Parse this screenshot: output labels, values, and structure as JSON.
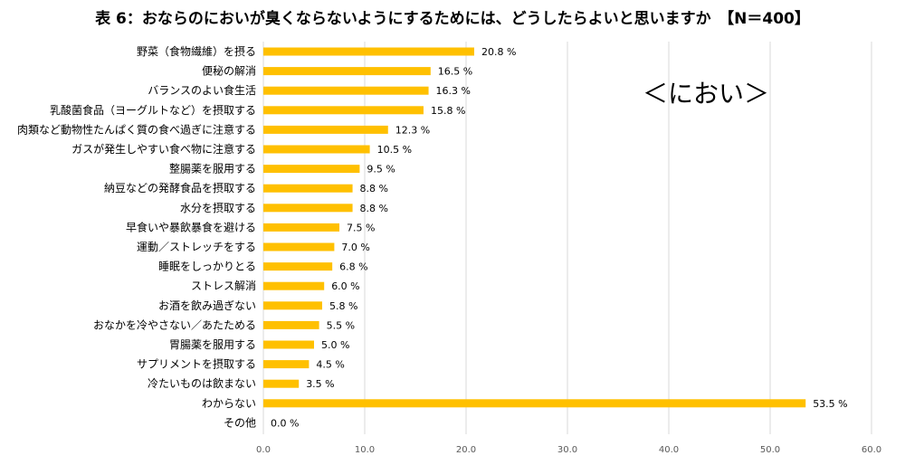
{
  "chart_data": {
    "type": "bar",
    "orientation": "horizontal",
    "title": "表 6：おならのにおいが臭くならないようにするためには、どうしたらよいと思いますか　【N＝400】",
    "annotation": "＜におい＞",
    "categories": [
      "野菜（食物繊維）を摂る",
      "便秘の解消",
      "バランスのよい食生活",
      "乳酸菌食品（ヨーグルトなど）を摂取する",
      "肉類など動物性たんぱく質の食べ過ぎに注意する",
      "ガスが発生しやすい食べ物に注意する",
      "整腸薬を服用する",
      "納豆などの発酵食品を摂取する",
      "水分を摂取する",
      "早食いや暴飲暴食を避ける",
      "運動／ストレッチをする",
      "睡眠をしっかりとる",
      "ストレス解消",
      "お酒を飲み過ぎない",
      "おなかを冷やさない／あたためる",
      "胃腸薬を服用する",
      "サプリメントを摂取する",
      "冷たいものは飲まない",
      "わからない",
      "その他"
    ],
    "values": [
      20.8,
      16.5,
      16.3,
      15.8,
      12.3,
      10.5,
      9.5,
      8.8,
      8.8,
      7.5,
      7.0,
      6.8,
      6.0,
      5.8,
      5.5,
      5.0,
      4.5,
      3.5,
      53.5,
      0.0
    ],
    "value_labels": [
      "20.8 %",
      "16.5 %",
      "16.3 %",
      "15.8 %",
      "12.3 %",
      "10.5 %",
      "9.5 %",
      "8.8 %",
      "8.8 %",
      "7.5 %",
      "7.0 %",
      "6.8 %",
      "6.0 %",
      "5.8 %",
      "5.5 %",
      "5.0 %",
      "4.5 %",
      "3.5 %",
      "53.5 %",
      "0.0 %"
    ],
    "xlim": [
      0,
      60
    ],
    "xticks": [
      "0.0",
      "10.0",
      "20.0",
      "30.0",
      "40.0",
      "50.0",
      "60.0"
    ],
    "xlabel": "",
    "ylabel": "",
    "grid": true,
    "bar_color": "#FFC000",
    "grid_color": "#D9D9D9"
  }
}
